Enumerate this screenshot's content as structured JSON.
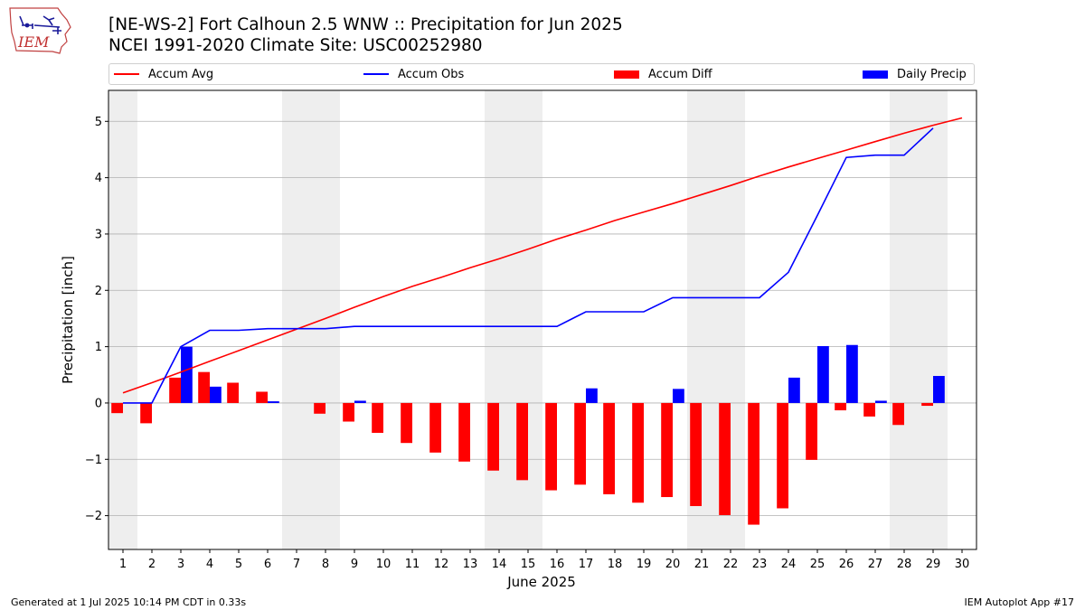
{
  "page": {
    "title_line1": "[NE-WS-2] Fort Calhoun 2.5 WNW :: Precipitation for Jun 2025",
    "title_line2": "NCEI 1991-2020 Climate Site: USC00252980",
    "logo_text": "IEM",
    "footer_left": "Generated at 1 Jul 2025 10:14 PM CDT in 0.33s",
    "footer_right": "IEM Autoplot App #17"
  },
  "legend": {
    "accum_avg": "Accum Avg",
    "accum_obs": "Accum Obs",
    "accum_diff": "Accum Diff",
    "daily_precip": "Daily Precip"
  },
  "colors": {
    "accum_avg": "#ff0000",
    "accum_obs": "#0000ff",
    "accum_diff": "#ff0000",
    "daily_precip": "#0000ff",
    "weekend_shade": "#eeeeee",
    "grid": "#b0b0b0"
  },
  "chart_data": {
    "type": "bar",
    "xlabel": "June 2025",
    "ylabel": "Precipitation [inch]",
    "ylim": [
      -2.6,
      5.55
    ],
    "yticks": [
      -2,
      -1,
      0,
      1,
      2,
      3,
      4,
      5
    ],
    "ytick_labels": [
      "−2",
      "−1",
      "0",
      "1",
      "2",
      "3",
      "4",
      "5"
    ],
    "x": [
      1,
      2,
      3,
      4,
      5,
      6,
      7,
      8,
      9,
      10,
      11,
      12,
      13,
      14,
      15,
      16,
      17,
      18,
      19,
      20,
      21,
      22,
      23,
      24,
      25,
      26,
      27,
      28,
      29,
      30
    ],
    "grid": "horizontal",
    "legend_position": "top",
    "weekend_days": [
      1,
      7,
      8,
      14,
      15,
      21,
      22,
      28,
      29
    ],
    "series": [
      {
        "name": "Accum Avg",
        "kind": "line",
        "x": [
          1,
          2,
          3,
          4,
          5,
          6,
          7,
          8,
          9,
          10,
          11,
          12,
          13,
          14,
          15,
          16,
          17,
          18,
          19,
          20,
          21,
          22,
          23,
          24,
          25,
          26,
          27,
          28,
          29,
          30
        ],
        "values": [
          0.18,
          0.36,
          0.55,
          0.74,
          0.93,
          1.12,
          1.31,
          1.5,
          1.7,
          1.89,
          2.07,
          2.23,
          2.4,
          2.56,
          2.73,
          2.91,
          3.07,
          3.24,
          3.39,
          3.54,
          3.7,
          3.86,
          4.03,
          4.19,
          4.34,
          4.49,
          4.64,
          4.79,
          4.93,
          5.06
        ]
      },
      {
        "name": "Accum Obs",
        "kind": "line",
        "x": [
          1,
          2,
          3,
          4,
          5,
          6,
          7,
          8,
          9,
          10,
          11,
          12,
          13,
          14,
          15,
          16,
          17,
          18,
          19,
          20,
          21,
          22,
          23,
          24,
          25,
          26,
          27,
          28,
          29
        ],
        "values": [
          0.0,
          0.0,
          1.0,
          1.29,
          1.29,
          1.32,
          1.32,
          1.32,
          1.36,
          1.36,
          1.36,
          1.36,
          1.36,
          1.36,
          1.36,
          1.36,
          1.62,
          1.62,
          1.62,
          1.87,
          1.87,
          1.87,
          1.87,
          2.32,
          3.33,
          4.36,
          4.4,
          4.4,
          4.88
        ]
      },
      {
        "name": "Accum Diff",
        "kind": "bar",
        "x": [
          1,
          2,
          3,
          4,
          5,
          6,
          7,
          8,
          9,
          10,
          11,
          12,
          13,
          14,
          15,
          16,
          17,
          18,
          19,
          20,
          21,
          22,
          23,
          24,
          25,
          26,
          27,
          28,
          29
        ],
        "values": [
          -0.18,
          -0.36,
          0.45,
          0.55,
          0.36,
          0.2,
          0.0,
          -0.19,
          -0.33,
          -0.53,
          -0.71,
          -0.88,
          -1.04,
          -1.2,
          -1.37,
          -1.55,
          -1.45,
          -1.62,
          -1.77,
          -1.67,
          -1.83,
          -1.99,
          -2.16,
          -1.87,
          -1.01,
          -0.13,
          -0.24,
          -0.39,
          -0.05
        ]
      },
      {
        "name": "Daily Precip",
        "kind": "bar",
        "x": [
          1,
          2,
          3,
          4,
          5,
          6,
          7,
          8,
          9,
          10,
          11,
          12,
          13,
          14,
          15,
          16,
          17,
          18,
          19,
          20,
          21,
          22,
          23,
          24,
          25,
          26,
          27,
          28,
          29
        ],
        "values": [
          0,
          0,
          1.0,
          0.29,
          0,
          0.03,
          0,
          0,
          0.04,
          0,
          0,
          0,
          0,
          0,
          0,
          0,
          0.26,
          0,
          0,
          0.25,
          0,
          0,
          0,
          0.45,
          1.01,
          1.03,
          0.04,
          0,
          0.48
        ]
      }
    ]
  }
}
